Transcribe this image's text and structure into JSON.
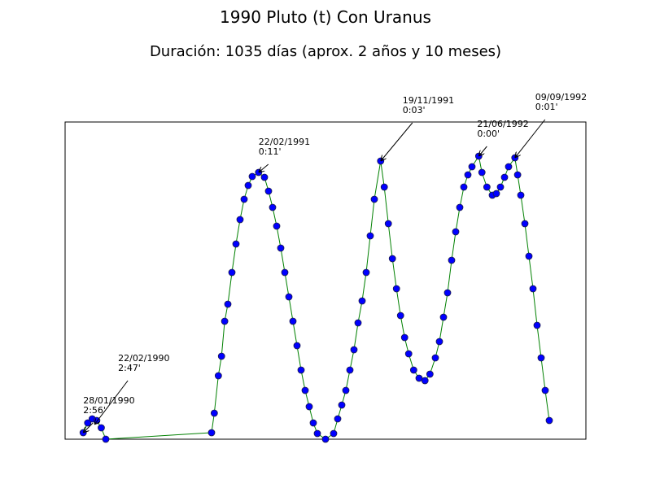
{
  "chart_data": {
    "type": "line",
    "title": "1990 Pluto (t) Con Uranus",
    "subtitle": "Duración: 1035 días (aprox. 2 años y 10 meses)",
    "xlim": [
      -40,
      1112
    ],
    "ylim": [
      0,
      390
    ],
    "series": [
      {
        "color": "#008000",
        "marker_color": "#0000ff",
        "x": [
          0,
          10,
          20,
          30,
          40,
          50,
          284,
          290,
          299,
          306,
          313,
          320,
          329,
          338,
          347,
          356,
          365,
          374,
          388,
          401,
          410,
          419,
          428,
          437,
          446,
          455,
          464,
          473,
          482,
          491,
          500,
          509,
          518,
          536,
          554,
          563,
          572,
          581,
          590,
          599,
          608,
          617,
          626,
          635,
          644,
          658,
          666,
          675,
          684,
          693,
          702,
          711,
          720,
          731,
          743,
          756,
          767,
          779,
          788,
          797,
          806,
          815,
          824,
          833,
          842,
          851,
          860,
          875,
          882,
          893,
          905,
          914,
          923,
          932,
          941,
          955,
          961,
          968,
          977,
          986,
          995,
          1004,
          1013,
          1022,
          1031
        ],
        "values": [
          8,
          20,
          25,
          23,
          14,
          0,
          8,
          32,
          78,
          102,
          145,
          166,
          205,
          240,
          270,
          295,
          312,
          323,
          328,
          322,
          305,
          285,
          262,
          235,
          205,
          175,
          145,
          115,
          85,
          60,
          40,
          20,
          7,
          0,
          7,
          25,
          42,
          60,
          85,
          110,
          143,
          170,
          205,
          250,
          295,
          342,
          310,
          265,
          222,
          185,
          152,
          125,
          105,
          85,
          75,
          72,
          80,
          100,
          120,
          150,
          180,
          220,
          255,
          285,
          310,
          325,
          335,
          348,
          328,
          310,
          300,
          302,
          310,
          322,
          335,
          346,
          325,
          300,
          265,
          225,
          185,
          140,
          100,
          60,
          23
        ]
      }
    ],
    "annotations": [
      {
        "lines": [
          "28/01/1990",
          "2:56'"
        ],
        "x": 0,
        "y": 8
      },
      {
        "lines": [
          "22/02/1990",
          "2:47'"
        ],
        "x": 25,
        "y": 18
      },
      {
        "lines": [
          "22/02/1991",
          "0:11'"
        ],
        "x": 388,
        "y": 328
      },
      {
        "lines": [
          "19/11/1991",
          "0:03'"
        ],
        "x": 658,
        "y": 342
      },
      {
        "lines": [
          "21/06/1992",
          "0:00'"
        ],
        "x": 875,
        "y": 348
      },
      {
        "lines": [
          "09/09/1992",
          "0:01'"
        ],
        "x": 955,
        "y": 346
      }
    ]
  }
}
